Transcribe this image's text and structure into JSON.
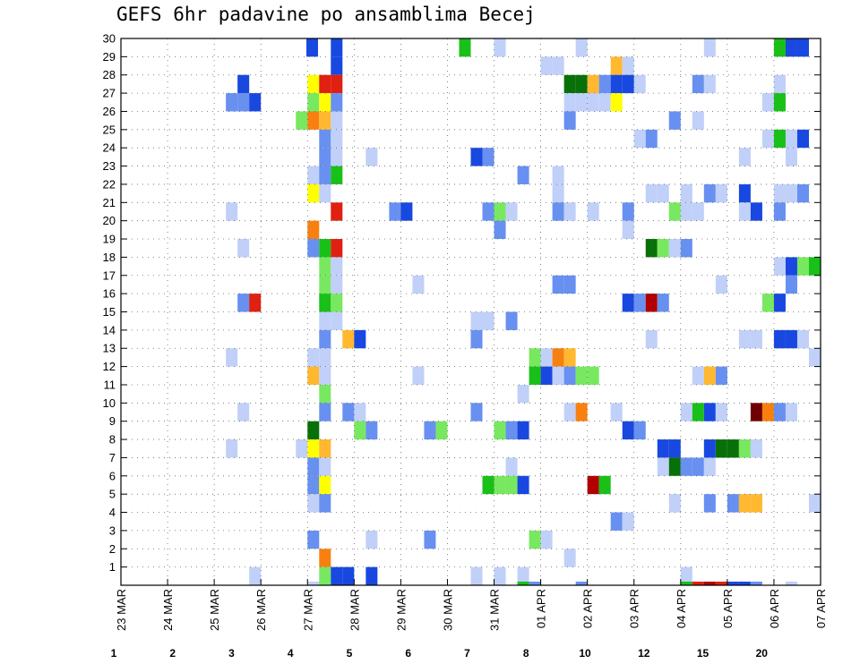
{
  "chart_data": {
    "type": "heatmap",
    "title": "GEFS 6hr padavine po ansamblima Becej",
    "xlabel": "",
    "ylabel": "",
    "x_tick_labels": [
      "23 MAR",
      "24 MAR",
      "25 MAR",
      "26 MAR",
      "27 MAR",
      "28 MAR",
      "29 MAR",
      "30 MAR",
      "31 MAR",
      "01 APR",
      "02 APR",
      "03 APR",
      "04 APR",
      "05 APR",
      "06 APR",
      "07 APR"
    ],
    "y_tick_labels": [
      "1",
      "2",
      "3",
      "4",
      "5",
      "6",
      "7",
      "8",
      "9",
      "10",
      "11",
      "12",
      "13",
      "14",
      "15",
      "16",
      "17",
      "18",
      "19",
      "20",
      "21",
      "22",
      "23",
      "24",
      "25",
      "26",
      "27",
      "28",
      "29",
      "30"
    ],
    "xlim": [
      0,
      60
    ],
    "ylim": [
      0,
      30
    ],
    "x_unit": "6-hour step from 23 MAR 00Z",
    "y_unit": "ensemble member",
    "grid": true,
    "colorbar": {
      "ticks": [
        "1",
        "2",
        "3",
        "4",
        "5",
        "6",
        "7",
        "8",
        "10",
        "12",
        "15",
        "20"
      ],
      "colors": [
        "#c0d0f8",
        "#6890f0",
        "#1848e0",
        "#78e860",
        "#18c018",
        "#087008",
        "#ffff00",
        "#ffb830",
        "#f88010",
        "#e02010",
        "#b00000",
        "#700000"
      ]
    },
    "cells": [
      {
        "x": 16.4,
        "y": 29.5,
        "c": 2
      },
      {
        "x": 18.5,
        "y": 29.5,
        "c": 2
      },
      {
        "x": 32.5,
        "y": 29.5,
        "c": 0
      },
      {
        "x": 29.5,
        "y": 29.5,
        "c": 4
      },
      {
        "x": 50.5,
        "y": 29.5,
        "c": 0
      },
      {
        "x": 39.5,
        "y": 29.5,
        "c": 0
      },
      {
        "x": 56.5,
        "y": 29.5,
        "c": 4
      },
      {
        "x": 57.5,
        "y": 29.5,
        "c": 2
      },
      {
        "x": 58.5,
        "y": 29.5,
        "c": 2
      },
      {
        "x": 18.5,
        "y": 28.5,
        "c": 2
      },
      {
        "x": 36.5,
        "y": 28.5,
        "c": 0
      },
      {
        "x": 37.5,
        "y": 28.5,
        "c": 0
      },
      {
        "x": 42.5,
        "y": 28.5,
        "c": 7
      },
      {
        "x": 43.5,
        "y": 28.5,
        "c": 0
      },
      {
        "x": 10.5,
        "y": 27.5,
        "c": 2
      },
      {
        "x": 16.5,
        "y": 27.5,
        "c": 6
      },
      {
        "x": 17.5,
        "y": 27.5,
        "c": 9
      },
      {
        "x": 18.5,
        "y": 27.5,
        "c": 9
      },
      {
        "x": 38.5,
        "y": 27.5,
        "c": 5
      },
      {
        "x": 39.5,
        "y": 27.5,
        "c": 5
      },
      {
        "x": 40.5,
        "y": 27.5,
        "c": 7
      },
      {
        "x": 41.5,
        "y": 27.5,
        "c": 1
      },
      {
        "x": 42.5,
        "y": 27.5,
        "c": 2
      },
      {
        "x": 43.5,
        "y": 27.5,
        "c": 2
      },
      {
        "x": 44.5,
        "y": 27.5,
        "c": 0
      },
      {
        "x": 49.5,
        "y": 27.5,
        "c": 1
      },
      {
        "x": 50.5,
        "y": 27.5,
        "c": 0
      },
      {
        "x": 56.5,
        "y": 27.5,
        "c": 0
      },
      {
        "x": 9.5,
        "y": 26.5,
        "c": 1
      },
      {
        "x": 10.5,
        "y": 26.5,
        "c": 1
      },
      {
        "x": 11.5,
        "y": 26.5,
        "c": 2
      },
      {
        "x": 16.5,
        "y": 26.5,
        "c": 3
      },
      {
        "x": 17.5,
        "y": 26.5,
        "c": 6
      },
      {
        "x": 18.5,
        "y": 26.5,
        "c": 1
      },
      {
        "x": 38.5,
        "y": 26.5,
        "c": 0
      },
      {
        "x": 39.5,
        "y": 26.5,
        "c": 0
      },
      {
        "x": 40.5,
        "y": 26.5,
        "c": 0
      },
      {
        "x": 41.5,
        "y": 26.5,
        "c": 0
      },
      {
        "x": 42.5,
        "y": 26.5,
        "c": 6
      },
      {
        "x": 55.5,
        "y": 26.5,
        "c": 0
      },
      {
        "x": 56.5,
        "y": 26.5,
        "c": 4
      },
      {
        "x": 15.5,
        "y": 25.5,
        "c": 3
      },
      {
        "x": 16.5,
        "y": 25.5,
        "c": 8
      },
      {
        "x": 17.5,
        "y": 25.5,
        "c": 7
      },
      {
        "x": 18.5,
        "y": 25.5,
        "c": 0
      },
      {
        "x": 38.5,
        "y": 25.5,
        "c": 1
      },
      {
        "x": 47.5,
        "y": 25.5,
        "c": 1
      },
      {
        "x": 49.5,
        "y": 25.5,
        "c": 0
      },
      {
        "x": 17.5,
        "y": 24.5,
        "c": 1
      },
      {
        "x": 18.5,
        "y": 24.5,
        "c": 0
      },
      {
        "x": 44.5,
        "y": 24.5,
        "c": 0
      },
      {
        "x": 45.5,
        "y": 24.5,
        "c": 1
      },
      {
        "x": 55.5,
        "y": 24.5,
        "c": 0
      },
      {
        "x": 56.5,
        "y": 24.5,
        "c": 4
      },
      {
        "x": 57.5,
        "y": 24.5,
        "c": 0
      },
      {
        "x": 58.5,
        "y": 24.5,
        "c": 2
      },
      {
        "x": 17.5,
        "y": 23.5,
        "c": 1
      },
      {
        "x": 18.5,
        "y": 23.5,
        "c": 0
      },
      {
        "x": 21.5,
        "y": 23.5,
        "c": 0
      },
      {
        "x": 30.5,
        "y": 23.5,
        "c": 2
      },
      {
        "x": 31.5,
        "y": 23.5,
        "c": 1
      },
      {
        "x": 53.5,
        "y": 23.5,
        "c": 0
      },
      {
        "x": 57.5,
        "y": 23.5,
        "c": 0
      },
      {
        "x": 16.5,
        "y": 22.5,
        "c": 0
      },
      {
        "x": 17.5,
        "y": 22.5,
        "c": 1
      },
      {
        "x": 18.5,
        "y": 22.5,
        "c": 4
      },
      {
        "x": 34.5,
        "y": 22.5,
        "c": 1
      },
      {
        "x": 37.5,
        "y": 22.5,
        "c": 0
      },
      {
        "x": 16.5,
        "y": 21.5,
        "c": 6
      },
      {
        "x": 17.5,
        "y": 21.5,
        "c": 0
      },
      {
        "x": 37.5,
        "y": 21.5,
        "c": 0
      },
      {
        "x": 45.5,
        "y": 21.5,
        "c": 0
      },
      {
        "x": 46.5,
        "y": 21.5,
        "c": 0
      },
      {
        "x": 48.5,
        "y": 21.5,
        "c": 0
      },
      {
        "x": 50.5,
        "y": 21.5,
        "c": 1
      },
      {
        "x": 51.5,
        "y": 21.5,
        "c": 0
      },
      {
        "x": 53.5,
        "y": 21.5,
        "c": 2
      },
      {
        "x": 56.5,
        "y": 21.5,
        "c": 0
      },
      {
        "x": 57.5,
        "y": 21.5,
        "c": 0
      },
      {
        "x": 58.5,
        "y": 21.5,
        "c": 1
      },
      {
        "x": 9.5,
        "y": 20.5,
        "c": 0
      },
      {
        "x": 18.5,
        "y": 20.5,
        "c": 9
      },
      {
        "x": 23.5,
        "y": 20.5,
        "c": 1
      },
      {
        "x": 24.5,
        "y": 20.5,
        "c": 2
      },
      {
        "x": 31.5,
        "y": 20.5,
        "c": 1
      },
      {
        "x": 32.5,
        "y": 20.5,
        "c": 3
      },
      {
        "x": 33.5,
        "y": 20.5,
        "c": 0
      },
      {
        "x": 37.5,
        "y": 20.5,
        "c": 1
      },
      {
        "x": 38.5,
        "y": 20.5,
        "c": 0
      },
      {
        "x": 40.5,
        "y": 20.5,
        "c": 0
      },
      {
        "x": 43.5,
        "y": 20.5,
        "c": 1
      },
      {
        "x": 47.5,
        "y": 20.5,
        "c": 3
      },
      {
        "x": 48.5,
        "y": 20.5,
        "c": 0
      },
      {
        "x": 49.5,
        "y": 20.5,
        "c": 0
      },
      {
        "x": 53.5,
        "y": 20.5,
        "c": 0
      },
      {
        "x": 54.5,
        "y": 20.5,
        "c": 2
      },
      {
        "x": 56.5,
        "y": 20.5,
        "c": 1
      },
      {
        "x": 16.5,
        "y": 19.5,
        "c": 8
      },
      {
        "x": 32.5,
        "y": 19.5,
        "c": 1
      },
      {
        "x": 43.5,
        "y": 19.5,
        "c": 0
      },
      {
        "x": 10.5,
        "y": 18.5,
        "c": 0
      },
      {
        "x": 16.5,
        "y": 18.5,
        "c": 1
      },
      {
        "x": 17.5,
        "y": 18.5,
        "c": 4
      },
      {
        "x": 18.5,
        "y": 18.5,
        "c": 9
      },
      {
        "x": 45.5,
        "y": 18.5,
        "c": 5
      },
      {
        "x": 46.5,
        "y": 18.5,
        "c": 3
      },
      {
        "x": 47.5,
        "y": 18.5,
        "c": 0
      },
      {
        "x": 48.5,
        "y": 18.5,
        "c": 1
      },
      {
        "x": 17.5,
        "y": 17.5,
        "c": 3
      },
      {
        "x": 18.5,
        "y": 17.5,
        "c": 0
      },
      {
        "x": 56.5,
        "y": 17.5,
        "c": 0
      },
      {
        "x": 57.5,
        "y": 17.5,
        "c": 2
      },
      {
        "x": 58.5,
        "y": 17.5,
        "c": 3
      },
      {
        "x": 59.5,
        "y": 17.5,
        "c": 4
      },
      {
        "x": 17.5,
        "y": 16.5,
        "c": 3
      },
      {
        "x": 18.5,
        "y": 16.5,
        "c": 0
      },
      {
        "x": 25.5,
        "y": 16.5,
        "c": 0
      },
      {
        "x": 37.5,
        "y": 16.5,
        "c": 1
      },
      {
        "x": 38.5,
        "y": 16.5,
        "c": 1
      },
      {
        "x": 51.5,
        "y": 16.5,
        "c": 0
      },
      {
        "x": 57.5,
        "y": 16.5,
        "c": 1
      },
      {
        "x": 10.5,
        "y": 15.5,
        "c": 1
      },
      {
        "x": 11.5,
        "y": 15.5,
        "c": 9
      },
      {
        "x": 17.5,
        "y": 15.5,
        "c": 4
      },
      {
        "x": 18.5,
        "y": 15.5,
        "c": 3
      },
      {
        "x": 43.5,
        "y": 15.5,
        "c": 2
      },
      {
        "x": 44.5,
        "y": 15.5,
        "c": 1
      },
      {
        "x": 45.5,
        "y": 15.5,
        "c": 10
      },
      {
        "x": 46.5,
        "y": 15.5,
        "c": 1
      },
      {
        "x": 55.5,
        "y": 15.5,
        "c": 3
      },
      {
        "x": 56.5,
        "y": 15.5,
        "c": 2
      },
      {
        "x": 17.5,
        "y": 14.5,
        "c": 0
      },
      {
        "x": 18.5,
        "y": 14.5,
        "c": 0
      },
      {
        "x": 30.5,
        "y": 14.5,
        "c": 0
      },
      {
        "x": 31.5,
        "y": 14.5,
        "c": 0
      },
      {
        "x": 33.5,
        "y": 14.5,
        "c": 1
      },
      {
        "x": 17.5,
        "y": 13.5,
        "c": 1
      },
      {
        "x": 19.5,
        "y": 13.5,
        "c": 7
      },
      {
        "x": 20.5,
        "y": 13.5,
        "c": 2
      },
      {
        "x": 30.5,
        "y": 13.5,
        "c": 1
      },
      {
        "x": 45.5,
        "y": 13.5,
        "c": 0
      },
      {
        "x": 53.5,
        "y": 13.5,
        "c": 0
      },
      {
        "x": 54.5,
        "y": 13.5,
        "c": 0
      },
      {
        "x": 56.5,
        "y": 13.5,
        "c": 2
      },
      {
        "x": 57.5,
        "y": 13.5,
        "c": 2
      },
      {
        "x": 58.5,
        "y": 13.5,
        "c": 0
      },
      {
        "x": 9.5,
        "y": 12.5,
        "c": 0
      },
      {
        "x": 16.5,
        "y": 12.5,
        "c": 0
      },
      {
        "x": 17.5,
        "y": 12.5,
        "c": 0
      },
      {
        "x": 35.5,
        "y": 12.5,
        "c": 3
      },
      {
        "x": 36.5,
        "y": 12.5,
        "c": 0
      },
      {
        "x": 37.5,
        "y": 12.5,
        "c": 8
      },
      {
        "x": 38.5,
        "y": 12.5,
        "c": 7
      },
      {
        "x": 59.5,
        "y": 12.5,
        "c": 0
      },
      {
        "x": 16.5,
        "y": 11.5,
        "c": 7
      },
      {
        "x": 17.5,
        "y": 11.5,
        "c": 0
      },
      {
        "x": 25.5,
        "y": 11.5,
        "c": 0
      },
      {
        "x": 35.5,
        "y": 11.5,
        "c": 4
      },
      {
        "x": 36.5,
        "y": 11.5,
        "c": 2
      },
      {
        "x": 37.5,
        "y": 11.5,
        "c": 0
      },
      {
        "x": 38.5,
        "y": 11.5,
        "c": 1
      },
      {
        "x": 39.5,
        "y": 11.5,
        "c": 3
      },
      {
        "x": 40.5,
        "y": 11.5,
        "c": 3
      },
      {
        "x": 49.5,
        "y": 11.5,
        "c": 0
      },
      {
        "x": 50.5,
        "y": 11.5,
        "c": 7
      },
      {
        "x": 51.5,
        "y": 11.5,
        "c": 1
      },
      {
        "x": 17.5,
        "y": 10.5,
        "c": 3
      },
      {
        "x": 34.5,
        "y": 10.5,
        "c": 0
      },
      {
        "x": 10.5,
        "y": 9.5,
        "c": 0
      },
      {
        "x": 17.5,
        "y": 9.5,
        "c": 1
      },
      {
        "x": 19.5,
        "y": 9.5,
        "c": 1
      },
      {
        "x": 20.5,
        "y": 9.5,
        "c": 0
      },
      {
        "x": 30.5,
        "y": 9.5,
        "c": 1
      },
      {
        "x": 38.5,
        "y": 9.5,
        "c": 0
      },
      {
        "x": 39.5,
        "y": 9.5,
        "c": 8
      },
      {
        "x": 42.5,
        "y": 9.5,
        "c": 0
      },
      {
        "x": 48.5,
        "y": 9.5,
        "c": 0
      },
      {
        "x": 49.5,
        "y": 9.5,
        "c": 4
      },
      {
        "x": 50.5,
        "y": 9.5,
        "c": 2
      },
      {
        "x": 51.5,
        "y": 9.5,
        "c": 0
      },
      {
        "x": 54.5,
        "y": 9.5,
        "c": 11
      },
      {
        "x": 55.5,
        "y": 9.5,
        "c": 8
      },
      {
        "x": 56.5,
        "y": 9.5,
        "c": 1
      },
      {
        "x": 57.5,
        "y": 9.5,
        "c": 0
      },
      {
        "x": 16.5,
        "y": 8.5,
        "c": 5
      },
      {
        "x": 20.5,
        "y": 8.5,
        "c": 3
      },
      {
        "x": 21.5,
        "y": 8.5,
        "c": 1
      },
      {
        "x": 26.5,
        "y": 8.5,
        "c": 1
      },
      {
        "x": 27.5,
        "y": 8.5,
        "c": 3
      },
      {
        "x": 32.5,
        "y": 8.5,
        "c": 3
      },
      {
        "x": 33.5,
        "y": 8.5,
        "c": 1
      },
      {
        "x": 34.5,
        "y": 8.5,
        "c": 2
      },
      {
        "x": 43.5,
        "y": 8.5,
        "c": 2
      },
      {
        "x": 44.5,
        "y": 8.5,
        "c": 1
      },
      {
        "x": 9.5,
        "y": 7.5,
        "c": 0
      },
      {
        "x": 15.5,
        "y": 7.5,
        "c": 0
      },
      {
        "x": 16.5,
        "y": 7.5,
        "c": 6
      },
      {
        "x": 17.5,
        "y": 7.5,
        "c": 7
      },
      {
        "x": 46.5,
        "y": 7.5,
        "c": 2
      },
      {
        "x": 47.5,
        "y": 7.5,
        "c": 2
      },
      {
        "x": 50.5,
        "y": 7.5,
        "c": 2
      },
      {
        "x": 51.5,
        "y": 7.5,
        "c": 5
      },
      {
        "x": 52.5,
        "y": 7.5,
        "c": 5
      },
      {
        "x": 53.5,
        "y": 7.5,
        "c": 3
      },
      {
        "x": 54.5,
        "y": 7.5,
        "c": 0
      },
      {
        "x": 16.5,
        "y": 6.5,
        "c": 1
      },
      {
        "x": 17.5,
        "y": 6.5,
        "c": 0
      },
      {
        "x": 33.5,
        "y": 6.5,
        "c": 0
      },
      {
        "x": 46.5,
        "y": 6.5,
        "c": 0
      },
      {
        "x": 47.5,
        "y": 6.5,
        "c": 5
      },
      {
        "x": 48.5,
        "y": 6.5,
        "c": 1
      },
      {
        "x": 49.5,
        "y": 6.5,
        "c": 1
      },
      {
        "x": 50.5,
        "y": 6.5,
        "c": 0
      },
      {
        "x": 16.5,
        "y": 5.5,
        "c": 1
      },
      {
        "x": 17.5,
        "y": 5.5,
        "c": 6
      },
      {
        "x": 31.5,
        "y": 5.5,
        "c": 4
      },
      {
        "x": 32.5,
        "y": 5.5,
        "c": 3
      },
      {
        "x": 33.5,
        "y": 5.5,
        "c": 3
      },
      {
        "x": 34.5,
        "y": 5.5,
        "c": 2
      },
      {
        "x": 40.5,
        "y": 5.5,
        "c": 10
      },
      {
        "x": 41.5,
        "y": 5.5,
        "c": 4
      },
      {
        "x": 16.5,
        "y": 4.5,
        "c": 0
      },
      {
        "x": 17.5,
        "y": 4.5,
        "c": 1
      },
      {
        "x": 47.5,
        "y": 4.5,
        "c": 0
      },
      {
        "x": 50.5,
        "y": 4.5,
        "c": 1
      },
      {
        "x": 52.5,
        "y": 4.5,
        "c": 1
      },
      {
        "x": 53.5,
        "y": 4.5,
        "c": 7
      },
      {
        "x": 54.5,
        "y": 4.5,
        "c": 7
      },
      {
        "x": 59.5,
        "y": 4.5,
        "c": 0
      },
      {
        "x": 42.5,
        "y": 3.5,
        "c": 1
      },
      {
        "x": 43.5,
        "y": 3.5,
        "c": 0
      },
      {
        "x": 16.5,
        "y": 2.5,
        "c": 1
      },
      {
        "x": 21.5,
        "y": 2.5,
        "c": 0
      },
      {
        "x": 26.5,
        "y": 2.5,
        "c": 1
      },
      {
        "x": 35.5,
        "y": 2.5,
        "c": 3
      },
      {
        "x": 36.5,
        "y": 2.5,
        "c": 0
      },
      {
        "x": 17.5,
        "y": 1.5,
        "c": 8
      },
      {
        "x": 38.5,
        "y": 1.5,
        "c": 0
      },
      {
        "x": 11.5,
        "y": 0.5,
        "c": 0
      },
      {
        "x": 17.5,
        "y": 0.5,
        "c": 3
      },
      {
        "x": 18.5,
        "y": 0.5,
        "c": 2
      },
      {
        "x": 19.5,
        "y": 0.5,
        "c": 2
      },
      {
        "x": 21.5,
        "y": 0.5,
        "c": 2
      },
      {
        "x": 30.5,
        "y": 0.5,
        "c": 0
      },
      {
        "x": 32.5,
        "y": 0.5,
        "c": 0
      },
      {
        "x": 34.5,
        "y": 0.5,
        "c": 0
      },
      {
        "x": 48.5,
        "y": 0.5,
        "c": 0
      },
      {
        "x": 16.5,
        "y": -0.3,
        "c": 0
      },
      {
        "x": 17.5,
        "y": -0.3,
        "c": 3
      },
      {
        "x": 34.5,
        "y": -0.3,
        "c": 4
      },
      {
        "x": 35.5,
        "y": -0.3,
        "c": 1
      },
      {
        "x": 39.5,
        "y": -0.3,
        "c": 1
      },
      {
        "x": 48.5,
        "y": -0.3,
        "c": 4
      },
      {
        "x": 49.5,
        "y": -0.3,
        "c": 9
      },
      {
        "x": 50.5,
        "y": -0.3,
        "c": 10
      },
      {
        "x": 51.5,
        "y": -0.3,
        "c": 9
      },
      {
        "x": 52.5,
        "y": -0.3,
        "c": 2
      },
      {
        "x": 53.5,
        "y": -0.3,
        "c": 2
      },
      {
        "x": 54.5,
        "y": -0.3,
        "c": 1
      },
      {
        "x": 57.5,
        "y": -0.3,
        "c": 0
      }
    ]
  }
}
